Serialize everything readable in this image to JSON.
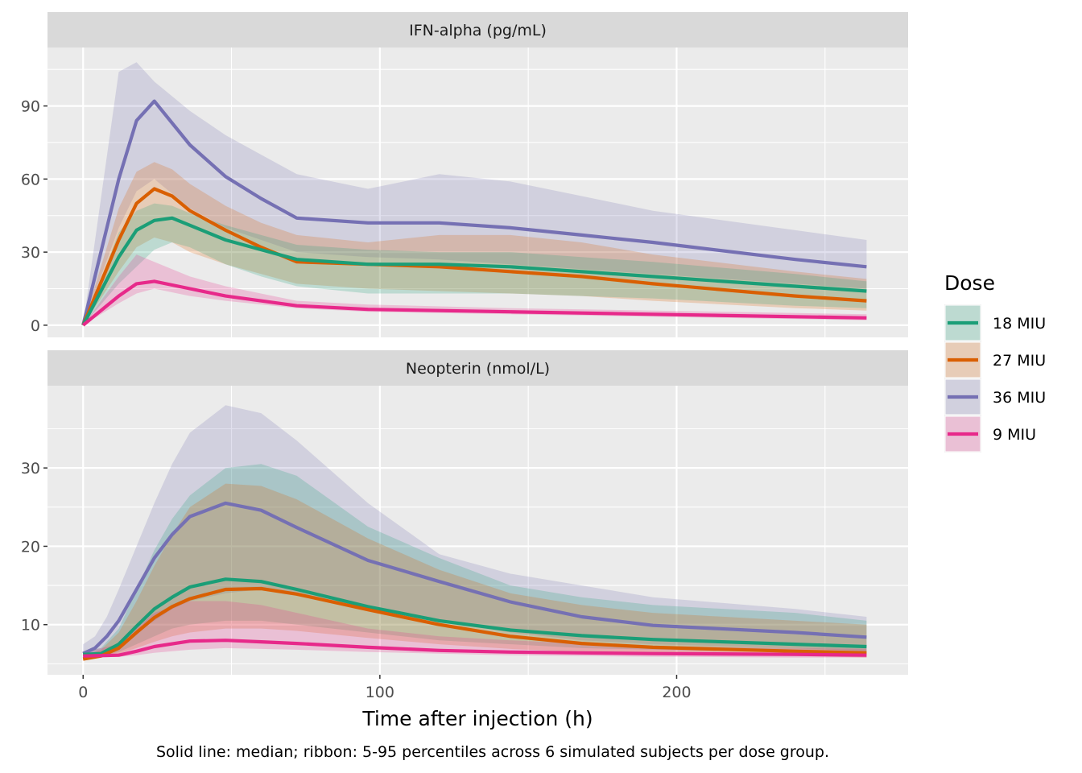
{
  "chart_data": {
    "type": "line",
    "facet_layout": "vertical",
    "xlabel": "Time after injection (h)",
    "x_ticks": [
      0,
      100,
      200
    ],
    "xlim": [
      -12,
      278
    ],
    "caption": "Solid line: median; ribbon: 5-95 percentiles across 6 simulated subjects per dose group.",
    "legend": {
      "title": "Dose",
      "position": "right",
      "entries": [
        {
          "label": "18 MIU",
          "color": "#1b9e77"
        },
        {
          "label": "27 MIU",
          "color": "#d95f02"
        },
        {
          "label": "36 MIU",
          "color": "#7570b3"
        },
        {
          "label": "9 MIU",
          "color": "#e7298a"
        }
      ]
    },
    "panels": [
      {
        "title": "IFN-alpha (pg/mL)",
        "ylim": [
          -5,
          114
        ],
        "y_ticks": [
          0,
          30,
          60,
          90
        ],
        "series": [
          {
            "name": "36 MIU",
            "color": "#7570b3",
            "x": [
              0,
              12,
              18,
              24,
              36,
              48,
              60,
              72,
              96,
              120,
              144,
              168,
              192,
              240,
              264
            ],
            "median": [
              0,
              60,
              84,
              92,
              74,
              61,
              52,
              44,
              42,
              42,
              40,
              37,
              34,
              27,
              24
            ],
            "lower": [
              0,
              40,
              55,
              60,
              48,
              40,
              35,
              30,
              28,
              27,
              25,
              23,
              21,
              17,
              15
            ],
            "upper": [
              0,
              104,
              108,
              100,
              88,
              78,
              70,
              62,
              56,
              62,
              59,
              53,
              47,
              39,
              35
            ]
          },
          {
            "name": "27 MIU",
            "color": "#d95f02",
            "x": [
              0,
              12,
              18,
              24,
              30,
              36,
              48,
              60,
              72,
              96,
              120,
              144,
              168,
              192,
              240,
              264
            ],
            "median": [
              0,
              35,
              50,
              56,
              53,
              47,
              39,
              32,
              26,
              25,
              24,
              22,
              20,
              17,
              12,
              10
            ],
            "lower": [
              0,
              22,
              32,
              36,
              34,
              30,
              25,
              21,
              17,
              15,
              14,
              13,
              12,
              10,
              7,
              6
            ],
            "upper": [
              0,
              48,
              63,
              67,
              64,
              58,
              49,
              42,
              37,
              34,
              37,
              37,
              34,
              29,
              22,
              19
            ]
          },
          {
            "name": "18 MIU",
            "color": "#1b9e77",
            "x": [
              0,
              12,
              18,
              24,
              30,
              36,
              48,
              60,
              72,
              96,
              120,
              144,
              168,
              192,
              240,
              264
            ],
            "median": [
              0,
              28,
              39,
              43,
              44,
              41,
              35,
              31,
              27,
              25,
              25,
              24,
              22,
              20,
              16,
              14
            ],
            "lower": [
              0,
              17,
              24,
              31,
              34,
              32,
              25,
              20,
              16,
              13,
              13,
              13,
              12,
              11,
              8,
              7
            ],
            "upper": [
              0,
              38,
              47,
              50,
              49,
              46,
              41,
              37,
              33,
              31,
              30,
              30,
              28,
              26,
              21,
              18
            ]
          },
          {
            "name": "9 MIU",
            "color": "#e7298a",
            "x": [
              0,
              12,
              18,
              24,
              36,
              48,
              72,
              96,
              144,
              192,
              240,
              264
            ],
            "median": [
              0,
              12,
              17,
              18,
              15,
              12,
              8,
              6.5,
              5.5,
              4.5,
              3.5,
              3
            ],
            "lower": [
              0,
              9,
              13,
              15,
              12,
              10,
              7,
              5.5,
              4.5,
              3.5,
              2.5,
              2
            ],
            "upper": [
              0,
              20,
              29,
              26,
              20,
              16,
              10,
              8.5,
              7,
              6,
              5,
              4.5
            ]
          }
        ]
      },
      {
        "title": "Neopterin (nmol/L)",
        "ylim": [
          3.6,
          40.5
        ],
        "y_ticks": [
          10,
          20,
          30
        ],
        "series": [
          {
            "name": "36 MIU",
            "color": "#7570b3",
            "x": [
              0,
              4,
              8,
              12,
              18,
              24,
              30,
              36,
              48,
              60,
              72,
              96,
              120,
              144,
              168,
              192,
              240,
              264
            ],
            "median": [
              6.3,
              7,
              8.5,
              10.5,
              14.5,
              18.5,
              21.5,
              23.8,
              25.5,
              24.6,
              22.4,
              18.2,
              15.5,
              12.9,
              11,
              9.9,
              9,
              8.4
            ],
            "lower": [
              5.8,
              6,
              6.5,
              7.5,
              9,
              10.5,
              12,
              13,
              14,
              14.5,
              14,
              12,
              10.5,
              9,
              8,
              7.5,
              7,
              6.6
            ],
            "upper": [
              7.5,
              8.5,
              11,
              14.5,
              20,
              25.5,
              30.5,
              34.5,
              38,
              37,
              33.5,
              25.5,
              19,
              16.5,
              15,
              13.5,
              12,
              11
            ]
          },
          {
            "name": "18 MIU",
            "color": "#1b9e77",
            "x": [
              0,
              6,
              12,
              18,
              24,
              30,
              36,
              48,
              60,
              72,
              96,
              120,
              144,
              168,
              192,
              240,
              264
            ],
            "median": [
              6.2,
              6.3,
              7.5,
              9.8,
              12,
              13.5,
              14.8,
              15.8,
              15.5,
              14.5,
              12.3,
              10.5,
              9.3,
              8.6,
              8.1,
              7.5,
              7.2
            ],
            "lower": [
              5.9,
              6,
              6.5,
              7.5,
              8.5,
              9.5,
              10,
              10.5,
              10.5,
              10,
              9,
              8,
              7.5,
              7,
              6.8,
              6.5,
              6.3
            ],
            "upper": [
              6.6,
              7,
              9.5,
              14.5,
              19.5,
              23.5,
              26.5,
              30,
              30.5,
              29,
              22.5,
              18.5,
              15,
              13.5,
              12.5,
              11.5,
              10.5
            ]
          },
          {
            "name": "27 MIU",
            "color": "#d95f02",
            "x": [
              0,
              6,
              12,
              18,
              24,
              30,
              36,
              48,
              60,
              72,
              96,
              120,
              144,
              168,
              192,
              240,
              264
            ],
            "median": [
              5.6,
              6,
              7,
              9,
              10.9,
              12.3,
              13.3,
              14.5,
              14.6,
              13.9,
              11.9,
              10,
              8.5,
              7.6,
              7.1,
              6.6,
              6.4
            ],
            "lower": [
              5.5,
              5.8,
              6.3,
              7,
              7.8,
              8.5,
              9,
              9.5,
              9.5,
              9.2,
              8.3,
              7.5,
              6.9,
              6.5,
              6.3,
              6,
              5.8
            ],
            "upper": [
              6,
              6.8,
              9,
              13,
              17.5,
              21.5,
              25,
              28,
              27.7,
              26,
              21,
              17,
              14,
              12.5,
              11.5,
              10.5,
              10
            ]
          },
          {
            "name": "9 MIU",
            "color": "#e7298a",
            "x": [
              0,
              12,
              18,
              24,
              36,
              48,
              60,
              72,
              96,
              120,
              144,
              168,
              192,
              240,
              264
            ],
            "median": [
              6,
              6.1,
              6.6,
              7.2,
              7.9,
              8,
              7.8,
              7.6,
              7.1,
              6.7,
              6.5,
              6.4,
              6.3,
              6.2,
              6.1
            ],
            "lower": [
              5.7,
              5.9,
              6.1,
              6.4,
              6.8,
              7,
              6.9,
              6.8,
              6.5,
              6.3,
              6.1,
              6,
              5.9,
              5.8,
              5.8
            ],
            "upper": [
              6.5,
              7.5,
              9.5,
              11.5,
              13,
              13,
              12.5,
              11.5,
              9.5,
              8.5,
              8,
              7.6,
              7.3,
              7,
              6.9
            ]
          }
        ]
      }
    ]
  }
}
